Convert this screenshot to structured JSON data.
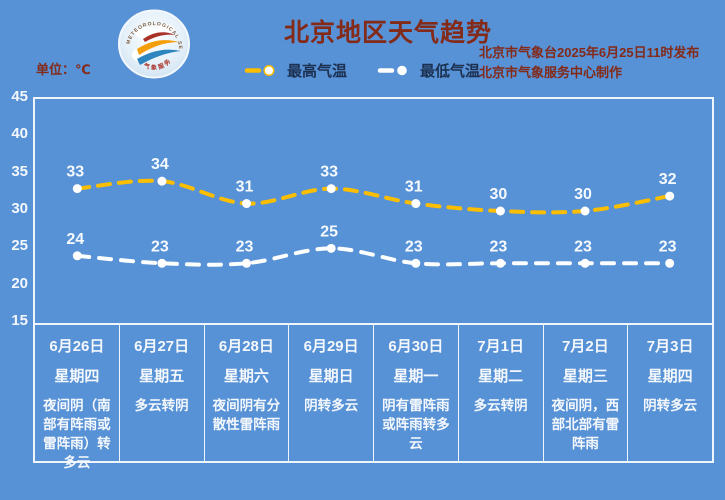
{
  "header": {
    "title": "北京地区天气趋势",
    "unit_label": "单位：℃",
    "source_line1": "北京市气象台2025年6月25日11时发布",
    "source_line2": "北京市气象服务中心制作",
    "logo_arc_text": "METEOROLOGICAL SERVICE",
    "logo_bottom_text": "气象服务"
  },
  "colors": {
    "background": "#5791D6",
    "high_line": "#FBBE00",
    "low_line": "#FDFEFE",
    "marker": "#FFFFFF",
    "heading_text": "#832A18",
    "legend_text": "#1C3050",
    "axis_text": "#F4F8FC",
    "border": "#EFF5FA"
  },
  "chart_data": {
    "type": "line",
    "title": "北京地区天气趋势",
    "unit": "℃",
    "categories": [
      "6月26日",
      "6月27日",
      "6月28日",
      "6月29日",
      "6月30日",
      "7月1日",
      "7月2日",
      "7月3日"
    ],
    "weekdays": [
      "星期四",
      "星期五",
      "星期六",
      "星期日",
      "星期一",
      "星期二",
      "星期三",
      "星期四"
    ],
    "weather": [
      "夜间阴（南部有阵雨或雷阵雨）转多云",
      "多云转阴",
      "夜间阴有分散性雷阵雨",
      "阴转多云",
      "阴有雷阵雨或阵雨转多云",
      "多云转阴",
      "夜间阴，西部北部有雷阵雨",
      "阴转多云"
    ],
    "series": [
      {
        "name": "最高气温",
        "values": [
          33,
          34,
          31,
          33,
          31,
          30,
          30,
          32
        ],
        "color": "#FBBE00"
      },
      {
        "name": "最低气温",
        "values": [
          24,
          23,
          23,
          25,
          23,
          23,
          23,
          23
        ],
        "color": "#FDFEFE"
      }
    ],
    "ylim": [
      15,
      45
    ],
    "yticks": [
      45,
      40,
      35,
      30,
      25,
      20,
      15
    ],
    "grid": false,
    "legend_position": "top"
  }
}
